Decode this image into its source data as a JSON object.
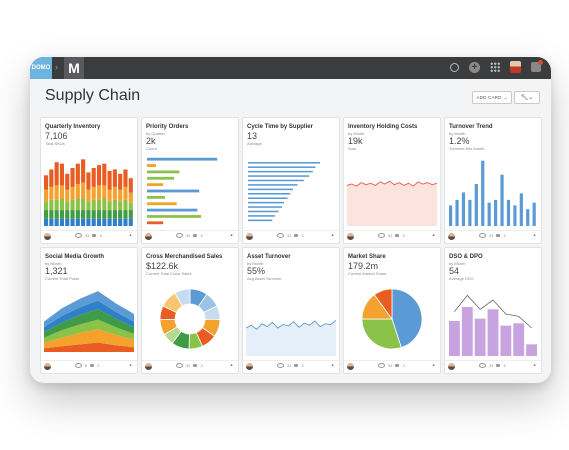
{
  "app": {
    "brand": "DOMO",
    "logo_letter": "M"
  },
  "page": {
    "title": "Supply Chain",
    "add_card_label": "ADD CARD"
  },
  "cards": [
    {
      "title": "Quarterly Inventory",
      "value": "7,106",
      "caption": "Total SKUs",
      "stats": [
        "31",
        "3"
      ],
      "chart": {
        "type": "bar",
        "stacked": true,
        "series": [
          {
            "color": "#e95d23",
            "values": [
              10,
              12,
              16,
              15,
              11,
              13,
              14,
              16,
              12,
              13,
              14,
              15,
              13,
              12,
              11,
              12,
              10
            ]
          },
          {
            "color": "#f4a22d",
            "values": [
              8,
              9,
              10,
              9,
              8,
              9,
              10,
              11,
              8,
              9,
              10,
              9,
              8,
              9,
              8,
              9,
              7
            ]
          },
          {
            "color": "#8bc34a",
            "values": [
              6,
              7,
              7,
              8,
              6,
              7,
              8,
              8,
              6,
              7,
              7,
              8,
              6,
              7,
              6,
              7,
              5
            ]
          },
          {
            "color": "#3f9b45",
            "values": [
              6,
              6,
              6,
              6,
              6,
              6,
              6,
              6,
              6,
              6,
              6,
              6,
              6,
              6,
              6,
              6,
              6
            ]
          },
          {
            "color": "#2f80c8",
            "values": [
              5,
              5,
              5,
              5,
              5,
              5,
              5,
              5,
              5,
              5,
              5,
              5,
              5,
              5,
              5,
              5,
              5
            ]
          }
        ]
      }
    },
    {
      "title": "Priority Orders",
      "subtitle": "by Quarter",
      "value": "2k",
      "caption": "Count",
      "stats": [
        "31",
        "2"
      ],
      "chart": {
        "type": "hbar",
        "bars": [
          {
            "color": "#5b9bd5",
            "value": 78
          },
          {
            "color": "#f4a22d",
            "value": 10
          },
          {
            "color": "#8bc34a",
            "value": 36
          },
          {
            "color": "#8bc34a",
            "value": 30
          },
          {
            "color": "#f4a22d",
            "value": 18
          },
          {
            "color": "#5b9bd5",
            "value": 58
          },
          {
            "color": "#8bc34a",
            "value": 20
          },
          {
            "color": "#f4a22d",
            "value": 33
          },
          {
            "color": "#5b9bd5",
            "value": 56
          },
          {
            "color": "#8bc34a",
            "value": 60
          },
          {
            "color": "#e95d23",
            "value": 18
          }
        ]
      }
    },
    {
      "title": "Cycle Time by Supplier",
      "value": "13",
      "caption": "Average",
      "stats": [
        "31",
        "2"
      ],
      "chart": {
        "type": "hbar_thin",
        "color": "#5b9bd5",
        "values": [
          80,
          75,
          72,
          68,
          62,
          55,
          50,
          47,
          44,
          40,
          38,
          34,
          30,
          27
        ]
      }
    },
    {
      "title": "Inventory Holding Costs",
      "subtitle": "by Month",
      "value": "19k",
      "caption": "Sum",
      "stats": [
        "31",
        "2"
      ],
      "chart": {
        "type": "area",
        "stroke": "#e35b4f",
        "fill": "#fde3de",
        "values": [
          58,
          60,
          57,
          62,
          59,
          61,
          58,
          63,
          60,
          64,
          59,
          62,
          58,
          61,
          57,
          63,
          60,
          62,
          59,
          61
        ]
      }
    },
    {
      "title": "Turnover Trend",
      "subtitle": "by Month",
      "value": "1.2%",
      "caption": "Turnover this month",
      "stats": [
        "31",
        "2"
      ],
      "chart": {
        "type": "bar_single",
        "color": "#5b9bd5",
        "values": [
          22,
          28,
          36,
          28,
          45,
          70,
          25,
          28,
          55,
          28,
          22,
          35,
          18,
          25
        ]
      }
    },
    {
      "title": "Social Media Growth",
      "subtitle": "by Month",
      "value": "1,321",
      "caption": "Current Total Posts",
      "stats": [
        "6",
        "2"
      ],
      "chart": {
        "type": "stacked_area",
        "colors": [
          "#e95d23",
          "#f4a22d",
          "#8bc34a",
          "#3f9b45",
          "#2f80c8",
          "#5b9bd5"
        ],
        "values": [
          [
            6,
            8,
            9,
            10,
            9,
            8
          ],
          [
            5,
            7,
            8,
            9,
            7,
            6
          ],
          [
            6,
            8,
            10,
            11,
            9,
            7
          ],
          [
            5,
            8,
            9,
            10,
            8,
            6
          ],
          [
            6,
            9,
            12,
            14,
            11,
            8
          ],
          [
            4,
            6,
            8,
            10,
            7,
            5
          ]
        ]
      }
    },
    {
      "title": "Cross Merchandised Sales",
      "value": "$122.6k",
      "caption": "Current Total Cross Sales",
      "stats": [
        "31",
        "2"
      ],
      "chart": {
        "type": "donut",
        "values": [
          9,
          8,
          7,
          9,
          8,
          7,
          9,
          6,
          8,
          7,
          9,
          8
        ],
        "colors": [
          "#5b9bd5",
          "#9cc3e6",
          "#c6dcf0",
          "#f4a22d",
          "#e95d23",
          "#8bc34a",
          "#3f9b45",
          "#b5d98e",
          "#f4a22d",
          "#e95d23",
          "#fbc56f",
          "#c6dcf0"
        ]
      }
    },
    {
      "title": "Asset Turnover",
      "subtitle": "by Month",
      "value": "55%",
      "caption": "Avg Asset Turnover",
      "stats": [
        "31",
        "2"
      ],
      "chart": {
        "type": "area",
        "stroke": "#5b9bd5",
        "fill": "#e4eff9",
        "values": [
          40,
          44,
          38,
          46,
          42,
          48,
          40,
          45,
          43,
          49,
          41,
          47,
          44,
          50,
          42,
          46,
          45,
          51
        ]
      }
    },
    {
      "title": "Market Share",
      "value": "179.2m",
      "caption": "Current Market Share",
      "stats": [
        "31",
        "2"
      ],
      "chart": {
        "type": "pie",
        "values": [
          45,
          30,
          15,
          10
        ],
        "colors": [
          "#5b9bd5",
          "#8bc34a",
          "#f4a22d",
          "#e95d23"
        ]
      }
    },
    {
      "title": "DSO & DPO",
      "subtitle": "by Month",
      "value": "54",
      "caption": "Average DSO",
      "stats": [
        "31",
        "2"
      ],
      "chart": {
        "type": "bar_line",
        "bar_color": "#c9a2e0",
        "line_color": "#666",
        "bars": [
          30,
          42,
          32,
          40,
          26,
          28,
          10
        ],
        "line": [
          38,
          52,
          40,
          48,
          36,
          34,
          24
        ]
      }
    }
  ]
}
